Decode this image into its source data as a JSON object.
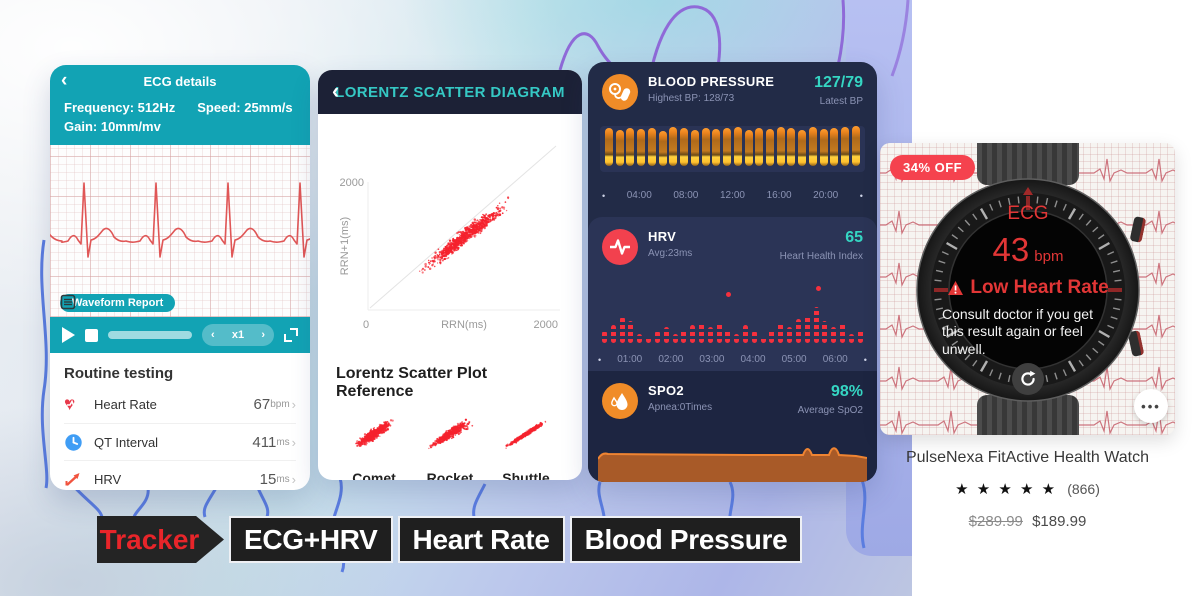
{
  "ecg_panel": {
    "title": "ECG details",
    "frequency": "Frequency: 512Hz",
    "speed": "Speed: 25mm/s",
    "gain": "Gain: 10mm/mv",
    "waveform_report": "Waveform Report",
    "playback": {
      "speed": "x1",
      "dec": "‹",
      "inc": "›"
    },
    "routine": {
      "heading": "Routine testing",
      "rows": [
        {
          "label": "Heart Rate",
          "value": "67",
          "unit": "bpm"
        },
        {
          "label": "QT Interval",
          "value": "411",
          "unit": "ms"
        },
        {
          "label": "HRV",
          "value": "15",
          "unit": "ms"
        }
      ]
    }
  },
  "lorentz_panel": {
    "title": "LORENTZ SCATTER DIAGRAM",
    "chart": {
      "y_top_tick": "2000",
      "x_left_tick": "0",
      "x_right_tick": "2000",
      "xlabel": "RRN(ms)",
      "ylabel": "RRN+1(ms)"
    },
    "reference": {
      "heading": "Lorentz Scatter Plot Reference",
      "items": [
        "Comet",
        "Rocket",
        "Shuttle"
      ]
    }
  },
  "bp_panel": {
    "bp": {
      "title": "BLOOD PRESSURE",
      "subtitle": "Highest BP: 128/73",
      "value": "127/79",
      "value_label": "Latest BP",
      "times": [
        "04:00",
        "08:00",
        "12:00",
        "16:00",
        "20:00"
      ],
      "bars": [
        38,
        36,
        38,
        37,
        38,
        35,
        39,
        38,
        36,
        38,
        37,
        38,
        39,
        36,
        38,
        37,
        39,
        38,
        36,
        39,
        37,
        38,
        39,
        40
      ]
    },
    "hrv": {
      "title": "HRV",
      "subtitle": "Avg:23ms",
      "value": "65",
      "value_label": "Heart Health Index",
      "times": [
        "01:00",
        "02:00",
        "03:00",
        "04:00",
        "05:00",
        "06:00"
      ],
      "bars": [
        12,
        18,
        26,
        22,
        9,
        7,
        12,
        16,
        9,
        14,
        18,
        20,
        16,
        20,
        14,
        9,
        18,
        12,
        7,
        14,
        20,
        16,
        24,
        28,
        36,
        22,
        16,
        20,
        9,
        14
      ],
      "outliers": [
        {
          "i": 14,
          "h": 46
        },
        {
          "i": 24,
          "h": 52
        }
      ]
    },
    "spo2": {
      "title": "SPO2",
      "subtitle": "Apnea:0Times",
      "value": "98%",
      "value_label": "Average SpO2"
    }
  },
  "product": {
    "discount_badge": "34% OFF",
    "watch_screen": {
      "title": "ECG",
      "bpm_value": "43",
      "bpm_unit": "bpm",
      "alert": "Low Heart Rate",
      "message": "Consult doctor if you get this result again or feel unwell."
    },
    "more_label": "•••",
    "title": "PulseNexa FitActive Health Watch",
    "stars": "★ ★ ★ ★ ★",
    "reviews": "(866)",
    "old_price": "$289.99",
    "price": "$189.99"
  },
  "banner": {
    "items": [
      "Tracker",
      "ECG+HRV",
      "Heart Rate",
      "Blood Pressure"
    ]
  },
  "colors": {
    "teal": "#12a3b4",
    "navy": "#1c2136",
    "accent_teal": "#35d6c3",
    "red": "#f5222d",
    "orange": "#f08c28",
    "badge_red": "#f5424e"
  }
}
